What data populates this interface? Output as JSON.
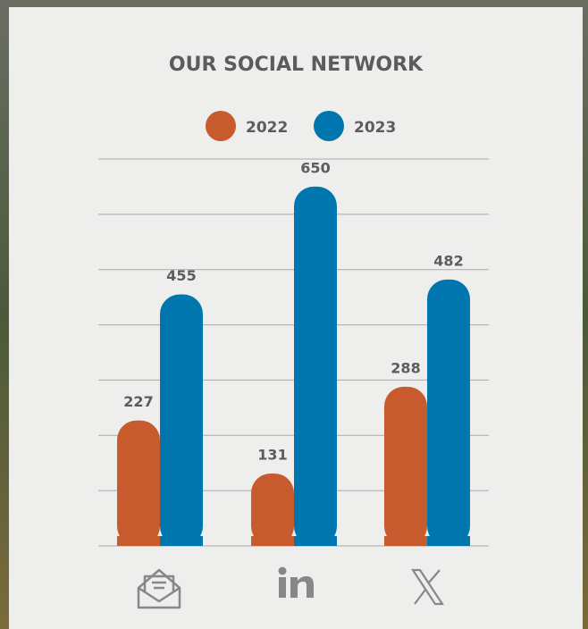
{
  "chart_data": {
    "type": "bar",
    "title": "OUR SOCIAL NETWORK",
    "categories": [
      null,
      null,
      null
    ],
    "series": [
      {
        "name": "2022",
        "color": "#c75b2d",
        "values": [
          227,
          131,
          288
        ]
      },
      {
        "name": "2023",
        "color": "#0076ae",
        "values": [
          455,
          650,
          482
        ]
      }
    ],
    "ylim": [
      0,
      700
    ],
    "yticks": [
      0,
      100,
      200,
      300,
      400,
      500,
      600,
      700
    ],
    "grid": true
  }
}
